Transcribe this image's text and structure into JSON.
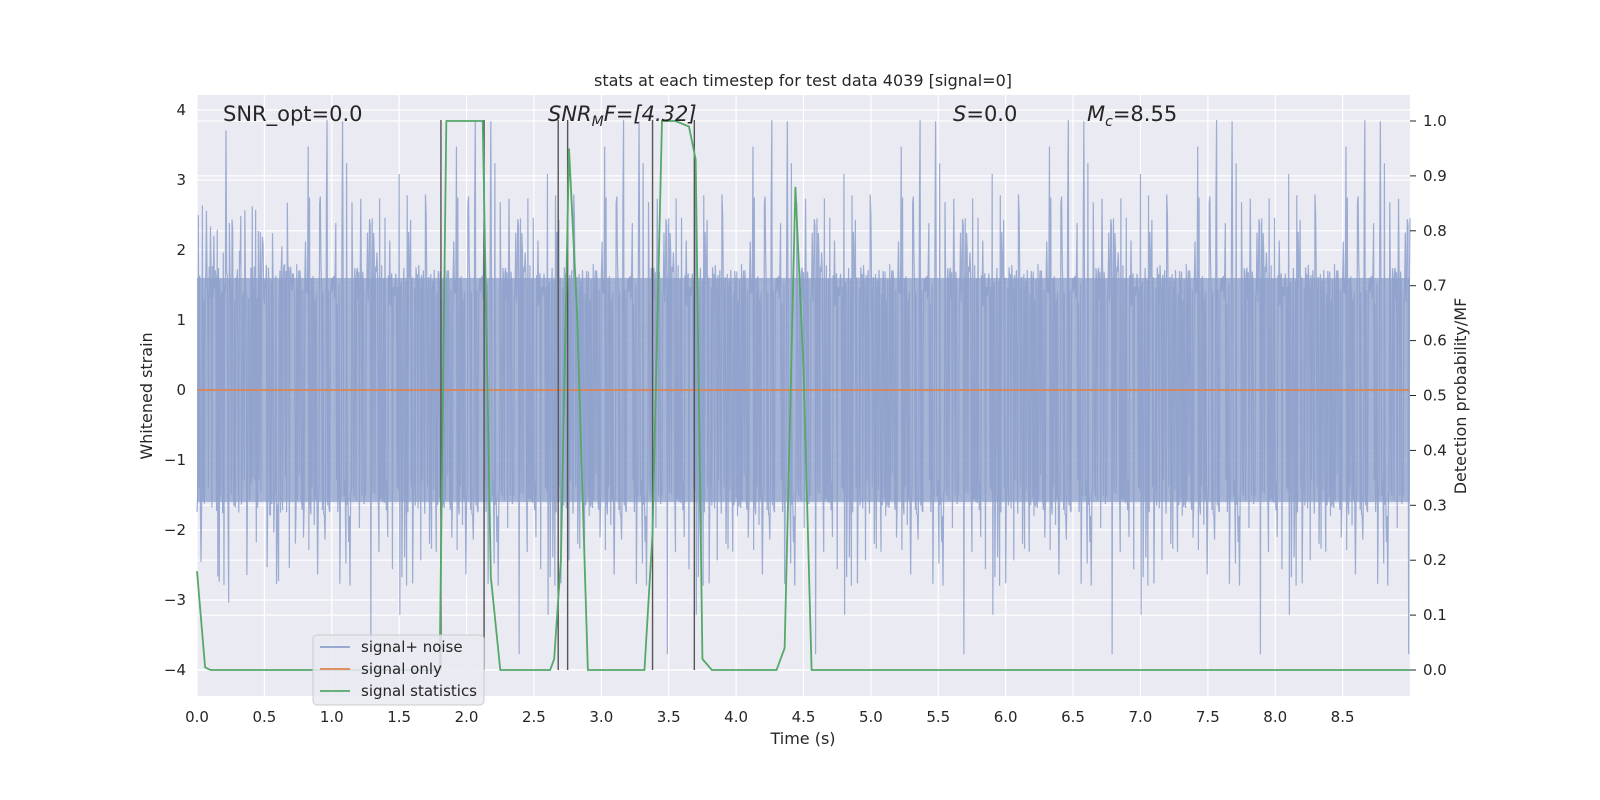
{
  "chart_data": {
    "type": "line",
    "title": "stats at each timestep for test data 4039 [signal=0]",
    "xlabel": "Time (s)",
    "ylabel": "Whitened strain",
    "y2label": "Detection probability/MF",
    "xlim": [
      0.0,
      9.0
    ],
    "ylim": [
      -4.4,
      4.2
    ],
    "y2lim": [
      -0.05,
      1.05
    ],
    "xticks": [
      "0.0",
      "0.5",
      "1.0",
      "1.5",
      "2.0",
      "2.5",
      "3.0",
      "3.5",
      "4.0",
      "4.5",
      "5.0",
      "5.5",
      "6.0",
      "6.5",
      "7.0",
      "7.5",
      "8.0",
      "8.5"
    ],
    "yticks": [
      "4",
      "3",
      "2",
      "1",
      "0",
      "−1",
      "−2",
      "−3",
      "−4"
    ],
    "y2ticks": [
      "1.0",
      "0.9",
      "0.8",
      "0.7",
      "0.6",
      "0.5",
      "0.4",
      "0.3",
      "0.2",
      "0.1",
      "0.0"
    ],
    "grid": true,
    "legend_position": "lower-left",
    "annotations": {
      "snr_opt": "SNR_opt=0.0",
      "snr_mf_sym": "SNR",
      "snr_mf_sub": "M",
      "snr_mf_rest": "F=[4.32]",
      "s_sym": "S",
      "s_rest": "=0.0",
      "mc_sym": "M",
      "mc_sub": "c",
      "mc_rest": "=8.55"
    },
    "series": [
      {
        "name": "signal+ noise",
        "color": "#8da0cb",
        "axis": "left",
        "noise_band": [
          -1.6,
          1.6
        ],
        "peak_range": [
          -3.9,
          3.9
        ]
      },
      {
        "name": "signal only",
        "color": "#dd8452",
        "axis": "left",
        "x": [
          0.0,
          9.0
        ],
        "y": [
          0.0,
          0.0
        ]
      },
      {
        "name": "signal statistics",
        "color": "#55a868",
        "axis": "right",
        "x": [
          0.0,
          0.06,
          0.1,
          0.15,
          1.8,
          1.85,
          1.88,
          2.12,
          2.18,
          2.25,
          2.62,
          2.65,
          2.7,
          2.76,
          2.82,
          2.9,
          2.95,
          3.32,
          3.38,
          3.45,
          3.55,
          3.65,
          3.7,
          3.75,
          3.82,
          4.3,
          4.36,
          4.44,
          4.5,
          4.56,
          4.62,
          9.0
        ],
        "y": [
          0.18,
          0.005,
          0.0,
          0.0,
          0.0,
          1.0,
          1.0,
          1.0,
          0.17,
          0.0,
          0.0,
          0.02,
          0.2,
          0.95,
          0.65,
          0.0,
          0.0,
          0.0,
          0.25,
          1.0,
          1.0,
          0.99,
          0.93,
          0.02,
          0.0,
          0.0,
          0.04,
          0.88,
          0.55,
          0.0,
          0.0,
          0.0
        ]
      }
    ],
    "vertical_markers_x": [
      1.81,
      2.13,
      2.68,
      2.75,
      3.38,
      3.69
    ]
  }
}
